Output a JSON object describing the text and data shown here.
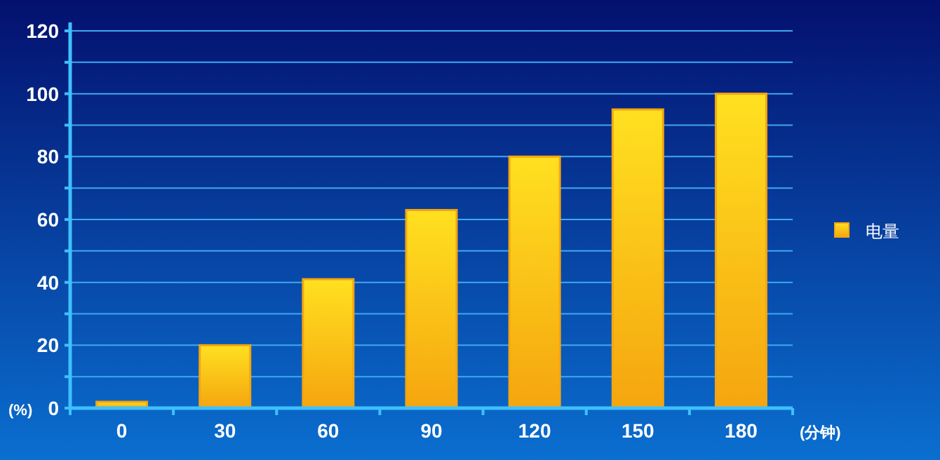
{
  "chart_data": {
    "type": "bar",
    "xlabel": "(分钟)",
    "ylabel": "(%)",
    "categories": [
      "0",
      "30",
      "60",
      "90",
      "120",
      "150",
      "180"
    ],
    "series": [
      {
        "name": "电量",
        "color": "#f5a50f",
        "values": [
          2,
          20,
          41,
          63,
          80,
          95,
          100
        ]
      }
    ],
    "ylim": [
      0,
      120
    ],
    "yticks": [
      0,
      {
        "value": 10,
        "label": null
      },
      20,
      {
        "value": 30,
        "label": null
      },
      40,
      {
        "value": 50,
        "label": null
      },
      60,
      {
        "value": 70,
        "label": null
      },
      80,
      {
        "value": 90,
        "label": null
      },
      100,
      {
        "value": 110,
        "label": null
      },
      120
    ],
    "grid": "y",
    "legend": "right"
  }
}
